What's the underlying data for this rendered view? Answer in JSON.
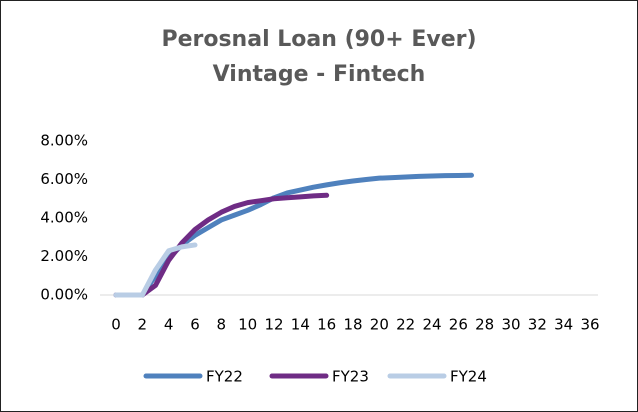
{
  "chart_data": {
    "type": "line",
    "title": [
      "Perosnal Loan (90+ Ever)",
      "Vintage - Fintech"
    ],
    "x": [
      0,
      1,
      2,
      3,
      4,
      5,
      6,
      7,
      8,
      9,
      10,
      11,
      12,
      13,
      14,
      15,
      16,
      17,
      18,
      19,
      20,
      21,
      22,
      23,
      24,
      25,
      26,
      27
    ],
    "series": [
      {
        "name": "FY22",
        "color": "#4f81bd",
        "values": [
          0,
          0,
          0,
          1.0,
          1.9,
          2.6,
          3.1,
          3.5,
          3.9,
          4.15,
          4.4,
          4.7,
          5.05,
          5.3,
          5.45,
          5.6,
          5.72,
          5.83,
          5.92,
          6.0,
          6.07,
          6.1,
          6.13,
          6.16,
          6.18,
          6.2,
          6.21,
          6.22
        ]
      },
      {
        "name": "FY23",
        "color": "#6f2c85",
        "values": [
          0,
          0,
          0,
          0.5,
          1.8,
          2.7,
          3.4,
          3.9,
          4.3,
          4.6,
          4.8,
          4.9,
          5.0,
          5.05,
          5.1,
          5.15,
          5.18,
          null,
          null,
          null,
          null,
          null,
          null,
          null,
          null,
          null,
          null,
          null
        ]
      },
      {
        "name": "FY24",
        "color": "#b9cde5",
        "values": [
          0,
          0,
          0,
          1.3,
          2.3,
          2.5,
          2.6,
          null,
          null,
          null,
          null,
          null,
          null,
          null,
          null,
          null,
          null,
          null,
          null,
          null,
          null,
          null,
          null,
          null,
          null,
          null,
          null,
          null
        ]
      }
    ],
    "xlim": [
      0,
      36
    ],
    "xticks": [
      0,
      2,
      4,
      6,
      8,
      10,
      12,
      14,
      16,
      18,
      20,
      22,
      24,
      26,
      28,
      30,
      32,
      34,
      36
    ],
    "ylim": [
      0,
      8
    ],
    "yticks": [
      {
        "value": 0,
        "label": "0.00%"
      },
      {
        "value": 2,
        "label": "2.00%"
      },
      {
        "value": 4,
        "label": "4.00%"
      },
      {
        "value": 6,
        "label": "6.00%"
      },
      {
        "value": 8,
        "label": "8.00%"
      }
    ],
    "legend": "bottom"
  }
}
